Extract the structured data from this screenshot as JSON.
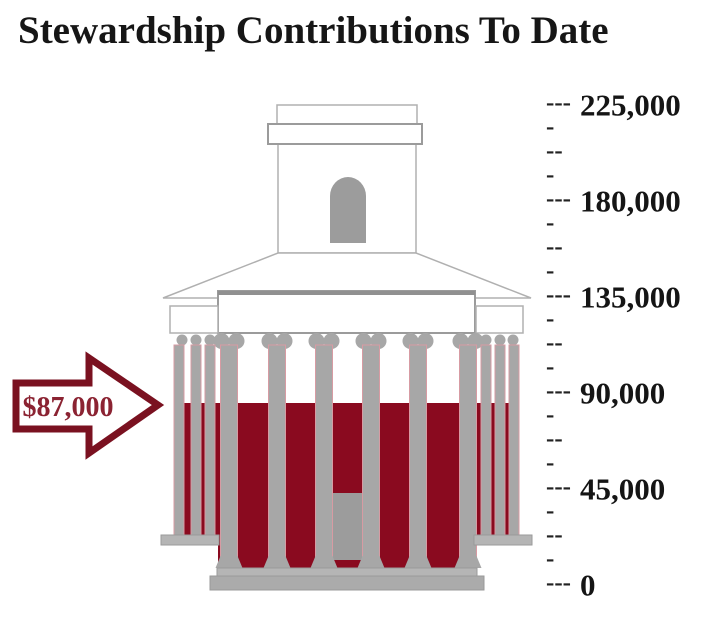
{
  "title": "Stewardship Contributions To Date",
  "indicator": {
    "label": "$87,000"
  },
  "chart_data": {
    "type": "bar",
    "title": "Stewardship Contributions To Date",
    "categories": [
      "Stewardship Contributions"
    ],
    "values": [
      87000
    ],
    "current_value": 87000,
    "current_value_label": "$87,000",
    "goal": 225000,
    "xlabel": "",
    "ylabel": "",
    "ylim": [
      0,
      225000
    ],
    "grid": false,
    "legend_position": "none",
    "axis": {
      "min": 0,
      "max": 225000,
      "major_tick_interval": 45000,
      "minor_tick_interval": 11250,
      "major_tick_values": [
        225000,
        180000,
        135000,
        90000,
        45000,
        0
      ],
      "tick_labels": [
        "225,000",
        "180,000",
        "135,000",
        "90,000",
        "45,000",
        "0"
      ]
    },
    "tick_glyphs": {
      "major": "---",
      "minor": "-",
      "minor_mid": "--"
    },
    "annotations": [
      {
        "text": "$87,000",
        "shape": "right-arrow",
        "at_value": 87000
      }
    ]
  },
  "colors": {
    "fill_red": "#8a0a1f",
    "arrow_outline": "#7a1120",
    "arrow_text": "#8b2332",
    "building_gray": "#a7a7a7",
    "window_gray": "#9c9c9c",
    "axis_text": "#1a1a1a"
  }
}
